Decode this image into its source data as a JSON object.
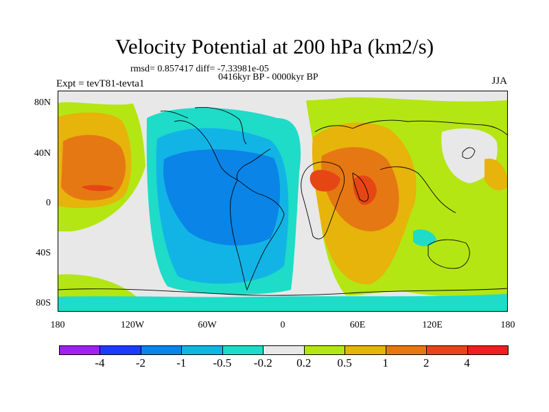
{
  "title": "Velocity Potential at 200 hPa (km2/s)",
  "stats": "rmsd= 0.857417 diff= -7.33981e-05",
  "period": "0416kyr BP - 0000kyr BP",
  "experiment": "Expt = tevT81-tevta1",
  "season": "JJA",
  "lat_ticks": [
    "80N",
    "40N",
    "0",
    "40S",
    "80S"
  ],
  "lon_ticks": [
    "180",
    "120W",
    "60W",
    "0",
    "60E",
    "120E",
    "180"
  ],
  "colorbar": {
    "labels": [
      "-4",
      "-2",
      "-1",
      "-0.5",
      "-0.2",
      "0.2",
      "0.5",
      "1",
      "2",
      "4"
    ],
    "colors": [
      "#a020f0",
      "#1e3cff",
      "#0a84e6",
      "#12b4e6",
      "#1edcc8",
      "#e8e8e8",
      "#b4e614",
      "#e6b40a",
      "#e67814",
      "#e64614",
      "#f01e1e"
    ]
  }
}
